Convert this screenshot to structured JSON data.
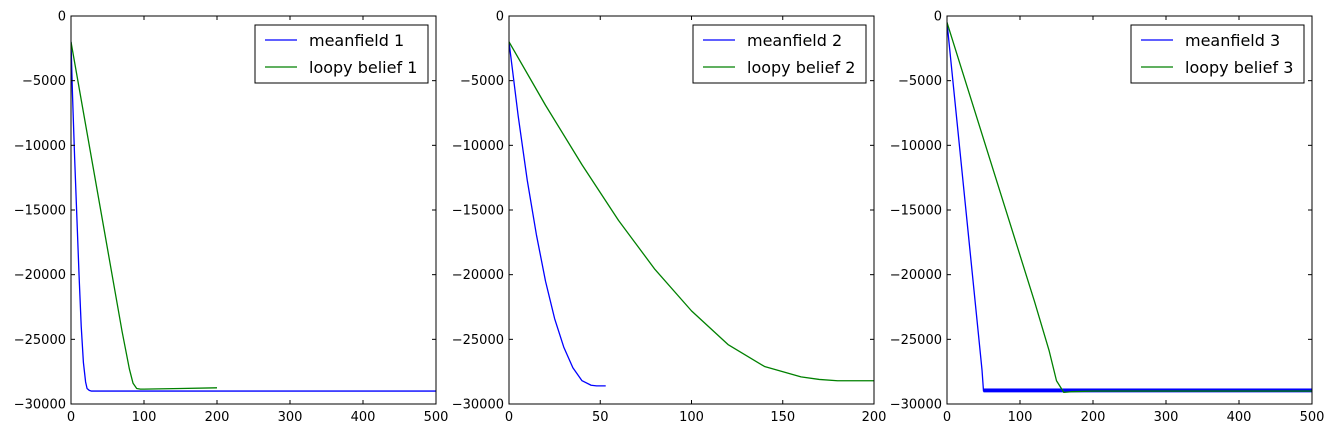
{
  "chart_data": [
    {
      "type": "line",
      "title": "",
      "xlabel": "",
      "ylabel": "",
      "xlim": [
        0,
        500
      ],
      "ylim": [
        -30000,
        0
      ],
      "xticks": [
        0,
        100,
        200,
        300,
        400,
        500
      ],
      "yticks": [
        0,
        -5000,
        -10000,
        -15000,
        -20000,
        -25000,
        -30000
      ],
      "xtick_labels": [
        "0",
        "100",
        "200",
        "300",
        "400",
        "500"
      ],
      "ytick_labels": [
        "0",
        "−5000",
        "−10000",
        "−15000",
        "−20000",
        "−25000",
        "−30000"
      ],
      "grid": false,
      "legend_position": "upper right",
      "series": [
        {
          "name": "meanfield 1",
          "color": "#0000ff",
          "x": [
            0,
            2,
            5,
            8,
            11,
            14,
            17,
            20,
            22,
            25,
            28,
            35,
            50,
            100,
            200,
            300,
            400,
            500
          ],
          "y": [
            -2000,
            -6000,
            -11000,
            -15500,
            -20000,
            -24000,
            -26800,
            -28300,
            -28800,
            -28950,
            -29000,
            -29000,
            -29000,
            -29000,
            -29000,
            -29000,
            -29000,
            -29000
          ]
        },
        {
          "name": "loopy belief 1",
          "color": "#008000",
          "x": [
            0,
            10,
            20,
            30,
            40,
            50,
            60,
            70,
            80,
            85,
            90,
            95,
            100,
            120,
            150,
            200
          ],
          "y": [
            -2000,
            -5200,
            -8400,
            -11600,
            -14800,
            -18000,
            -21200,
            -24400,
            -27300,
            -28400,
            -28800,
            -28850,
            -28850,
            -28830,
            -28800,
            -28750
          ]
        }
      ]
    },
    {
      "type": "line",
      "title": "",
      "xlabel": "",
      "ylabel": "",
      "xlim": [
        0,
        200
      ],
      "ylim": [
        -30000,
        0
      ],
      "xticks": [
        0,
        50,
        100,
        150,
        200
      ],
      "yticks": [
        0,
        -5000,
        -10000,
        -15000,
        -20000,
        -25000,
        -30000
      ],
      "xtick_labels": [
        "0",
        "50",
        "100",
        "150",
        "200"
      ],
      "ytick_labels": [
        "0",
        "−5000",
        "−10000",
        "−15000",
        "−20000",
        "−25000",
        "−30000"
      ],
      "grid": false,
      "legend_position": "upper right",
      "series": [
        {
          "name": "meanfield 2",
          "color": "#0000ff",
          "x": [
            0,
            5,
            10,
            15,
            20,
            25,
            30,
            35,
            40,
            45,
            48,
            50,
            53
          ],
          "y": [
            -2000,
            -7700,
            -12700,
            -16900,
            -20500,
            -23400,
            -25600,
            -27200,
            -28200,
            -28550,
            -28600,
            -28600,
            -28600
          ]
        },
        {
          "name": "loopy belief 2",
          "color": "#008000",
          "x": [
            0,
            20,
            40,
            60,
            80,
            100,
            120,
            140,
            160,
            170,
            180,
            190,
            200
          ],
          "y": [
            -2000,
            -6900,
            -11500,
            -15800,
            -19600,
            -22800,
            -25400,
            -27100,
            -27900,
            -28100,
            -28200,
            -28200,
            -28200
          ]
        }
      ]
    },
    {
      "type": "line",
      "title": "",
      "xlabel": "",
      "ylabel": "",
      "xlim": [
        0,
        500
      ],
      "ylim": [
        -30000,
        0
      ],
      "xticks": [
        0,
        100,
        200,
        300,
        400,
        500
      ],
      "yticks": [
        0,
        -5000,
        -10000,
        -15000,
        -20000,
        -25000,
        -30000
      ],
      "xtick_labels": [
        "0",
        "100",
        "200",
        "300",
        "400",
        "500"
      ],
      "ytick_labels": [
        "0",
        "−5000",
        "−10000",
        "−15000",
        "−20000",
        "−25000",
        "−30000"
      ],
      "grid": false,
      "legend_position": "upper right",
      "series": [
        {
          "name": "meanfield 3",
          "color": "#0000ff",
          "x": [
            0,
            5,
            10,
            15,
            20,
            25,
            30,
            35,
            40,
            45,
            48,
            50,
            100,
            200,
            300,
            400,
            500
          ],
          "y": [
            -500,
            -3300,
            -6100,
            -8900,
            -11700,
            -14500,
            -17300,
            -20100,
            -22900,
            -25700,
            -27400,
            -29000,
            -29000,
            -29000,
            -29000,
            -29000,
            -29000
          ],
          "band_x_range": [
            50,
            500
          ],
          "band_y_range": [
            -29100,
            -28800
          ]
        },
        {
          "name": "loopy belief 3",
          "color": "#008000",
          "x": [
            0,
            20,
            40,
            60,
            80,
            100,
            120,
            140,
            150,
            160,
            170,
            200,
            250,
            300,
            350,
            400,
            450,
            500
          ],
          "y": [
            -500,
            -4100,
            -7700,
            -11300,
            -14900,
            -18500,
            -22100,
            -25900,
            -28200,
            -29100,
            -29050,
            -29000,
            -29000,
            -29000,
            -29000,
            -29000,
            -29000,
            -29000
          ]
        }
      ]
    }
  ]
}
